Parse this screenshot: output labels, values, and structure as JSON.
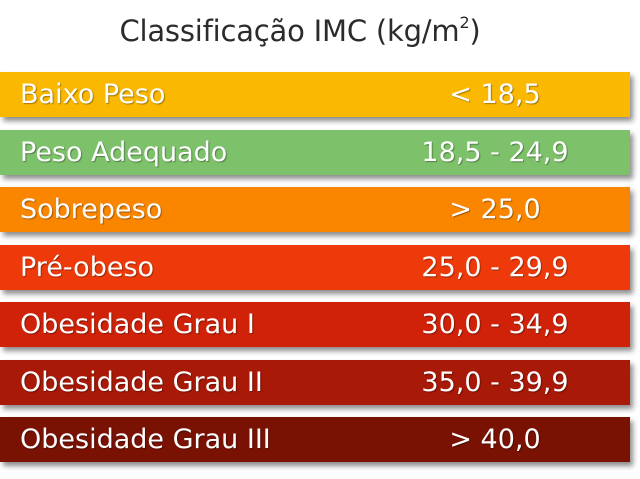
{
  "title": {
    "text": "Classificação IMC (kg/m",
    "superscript": "2",
    "closing": ")"
  },
  "rows": [
    {
      "label": "Baixo Peso",
      "value": "< 18,5",
      "color": "#FBB800"
    },
    {
      "label": "Peso Adequado",
      "value": "18,5 - 24,9",
      "color": "#7DC26B"
    },
    {
      "label": "Sobrepeso",
      "value": "> 25,0",
      "color": "#FA8600"
    },
    {
      "label": "Pré-obeso",
      "value": "25,0 - 29,9",
      "color": "#EE3A0A"
    },
    {
      "label": "Obesidade Grau I",
      "value": "30,0 - 34,9",
      "color": "#CF2209"
    },
    {
      "label": "Obesidade Grau II",
      "value": "35,0 - 39,9",
      "color": "#A81907"
    },
    {
      "label": "Obesidade Grau III",
      "value": "> 40,0",
      "color": "#7A1204"
    }
  ]
}
